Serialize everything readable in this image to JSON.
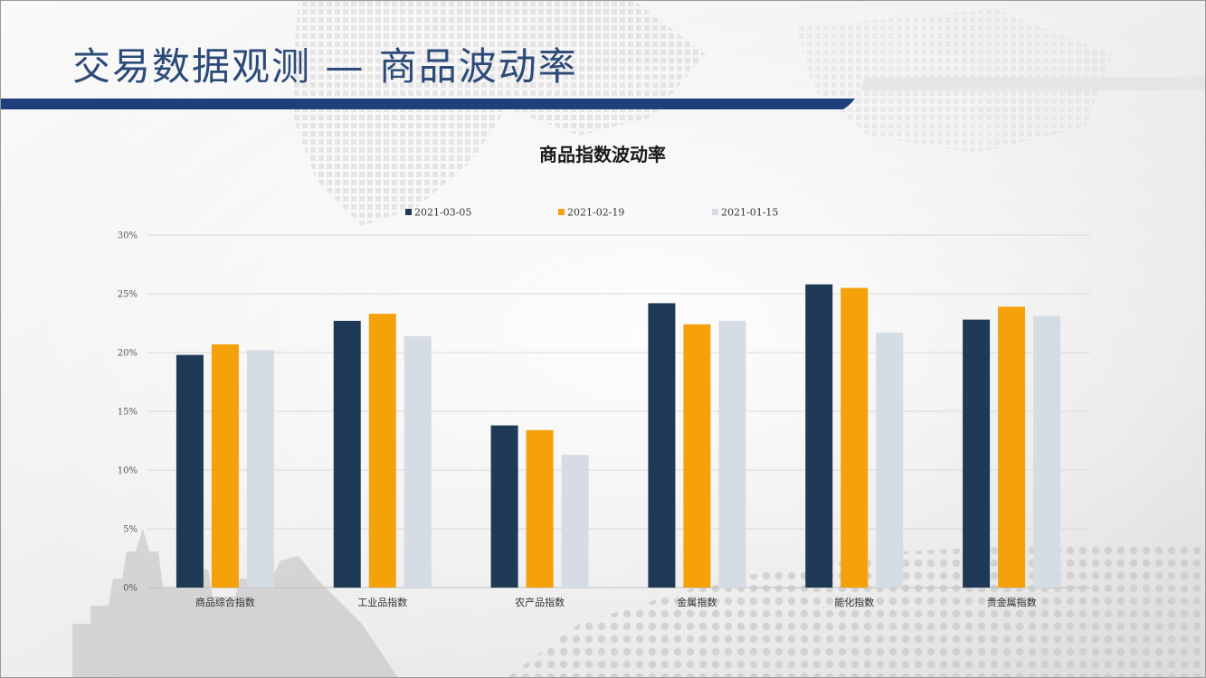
{
  "slide": {
    "title": "交易数据观测 — 商品波动率"
  },
  "colors": {
    "title_text": "#2b4a78",
    "title_bar": "#1f3f7a"
  },
  "chart_data": {
    "type": "bar",
    "title": "商品指数波动率",
    "xlabel": "",
    "ylabel": "",
    "ylim": [
      0,
      30
    ],
    "yticks": [
      0,
      5,
      10,
      15,
      20,
      25,
      30
    ],
    "ytick_labels": [
      "0%",
      "5%",
      "10%",
      "15%",
      "20%",
      "25%",
      "30%"
    ],
    "grid": true,
    "legend_position": "top-center",
    "categories": [
      "商品综合指数",
      "工业品指数",
      "农产品指数",
      "金属指数",
      "能化指数",
      "贵金属指数"
    ],
    "series": [
      {
        "name": "2021-03-05",
        "color": "#1f3a56",
        "values": [
          19.8,
          22.7,
          13.8,
          24.2,
          25.8,
          22.8
        ]
      },
      {
        "name": "2021-02-19",
        "color": "#f5a10a",
        "values": [
          20.7,
          23.3,
          13.4,
          22.4,
          25.5,
          23.9
        ]
      },
      {
        "name": "2021-01-15",
        "color": "#d6dce4",
        "values": [
          20.2,
          21.4,
          11.3,
          22.7,
          21.7,
          23.1
        ]
      }
    ]
  }
}
